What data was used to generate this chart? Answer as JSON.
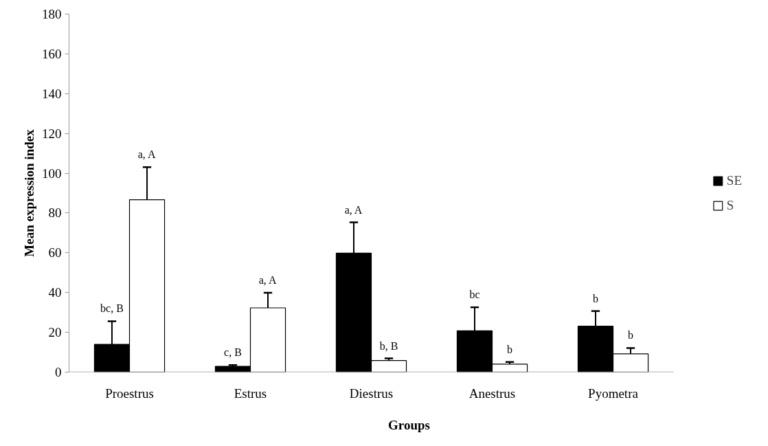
{
  "chart_data": {
    "type": "bar",
    "xlabel": "Groups",
    "ylabel": "Mean expression index",
    "categories": [
      "Proestrus",
      "Estrus",
      "Diestrus",
      "Anestrus",
      "Pyometra"
    ],
    "series": [
      {
        "name": "SE",
        "color": "#000000",
        "values": [
          14,
          2.9,
          59.8,
          20.8,
          23.1
        ],
        "errors": [
          [
            14,
            25.6
          ],
          [
            2.9,
            3.5
          ],
          [
            59.8,
            75.3
          ],
          [
            20.8,
            32.6
          ],
          [
            23.1,
            30.7
          ]
        ]
      },
      {
        "name": "S",
        "color": "#ffffff",
        "values": [
          86.7,
          32.3,
          5.8,
          4.0,
          9.2
        ],
        "errors": [
          [
            86.7,
            103
          ],
          [
            32.3,
            39.9
          ],
          [
            5.8,
            6.9
          ],
          [
            4.0,
            5.1
          ],
          [
            9.2,
            12.1
          ]
        ]
      }
    ],
    "ylim": [
      0,
      180
    ],
    "yticks": [
      0,
      20,
      40,
      60,
      80,
      100,
      120,
      140,
      160,
      180
    ],
    "grid": false,
    "legend": "right",
    "annotations": [
      "bc, B",
      "a, A",
      "c, B",
      "a, A",
      "a, A",
      "b, B",
      "bc",
      "b",
      "b",
      "b"
    ]
  }
}
